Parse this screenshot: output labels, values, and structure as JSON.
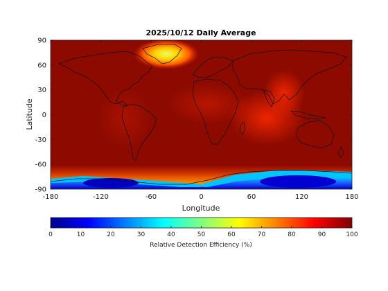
{
  "map": {
    "title": "2025/10/12 Daily Average",
    "xlabel": "Longitude",
    "ylabel": "Latitude",
    "lon_range": [
      -180,
      180
    ],
    "lat_range": [
      -90,
      90
    ],
    "x_ticks": [
      "-180",
      "-120",
      "-60",
      "0",
      "60",
      "120",
      "180"
    ],
    "x_tick_values": [
      -180,
      -120,
      -60,
      0,
      60,
      120,
      180
    ],
    "y_ticks": [
      "90",
      "60",
      "30",
      "0",
      "-30",
      "-60",
      "-90"
    ],
    "y_tick_values": [
      90,
      60,
      30,
      0,
      -30,
      -60,
      -90
    ],
    "background_color": "#8c0a00",
    "coastline_color": "#111111"
  },
  "colorbar": {
    "label": "Relative Detection Efficiency (%)",
    "range": [
      0,
      100
    ],
    "ticks": [
      "0",
      "10",
      "20",
      "30",
      "40",
      "50",
      "60",
      "70",
      "80",
      "90",
      "100"
    ],
    "tick_values": [
      0,
      10,
      20,
      30,
      40,
      50,
      60,
      70,
      80,
      90,
      100
    ],
    "colormap": "jet"
  }
}
